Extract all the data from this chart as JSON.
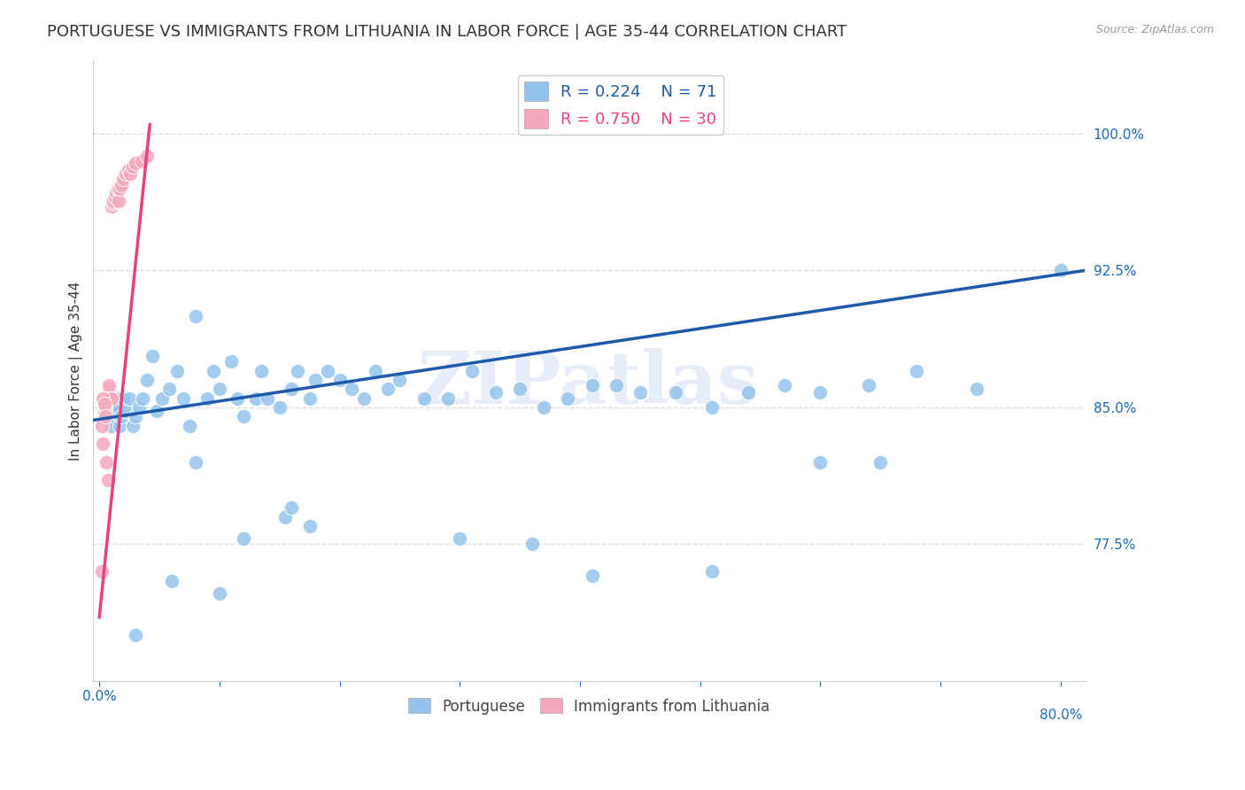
{
  "title": "PORTUGUESE VS IMMIGRANTS FROM LITHUANIA IN LABOR FORCE | AGE 35-44 CORRELATION CHART",
  "source": "Source: ZipAtlas.com",
  "ylabel": "In Labor Force | Age 35-44",
  "ytick_labels": [
    "100.0%",
    "92.5%",
    "85.0%",
    "77.5%"
  ],
  "ytick_values": [
    1.0,
    0.925,
    0.85,
    0.775
  ],
  "ymin": 0.7,
  "ymax": 1.04,
  "xmin": -0.005,
  "xmax": 0.82,
  "xtick_left_label": "0.0%",
  "xtick_right_label": "80.0%",
  "blue_r": "0.224",
  "blue_n": "71",
  "pink_r": "0.750",
  "pink_n": "30",
  "legend_label_blue": "Portuguese",
  "legend_label_pink": "Immigrants from Lithuania",
  "blue_color": "#94C4EC",
  "pink_color": "#F4A8BC",
  "blue_line_color": "#1E5AAB",
  "pink_line_color": "#E8407A",
  "watermark": "ZIPatlas",
  "blue_scatter_x": [
    0.005,
    0.006,
    0.007,
    0.008,
    0.009,
    0.01,
    0.01,
    0.011,
    0.012,
    0.013,
    0.014,
    0.015,
    0.016,
    0.017,
    0.018,
    0.02,
    0.022,
    0.025,
    0.028,
    0.03,
    0.033,
    0.036,
    0.04,
    0.044,
    0.048,
    0.052,
    0.058,
    0.065,
    0.07,
    0.075,
    0.08,
    0.09,
    0.095,
    0.1,
    0.11,
    0.115,
    0.12,
    0.13,
    0.135,
    0.14,
    0.15,
    0.16,
    0.165,
    0.175,
    0.18,
    0.19,
    0.2,
    0.21,
    0.22,
    0.23,
    0.24,
    0.25,
    0.27,
    0.29,
    0.31,
    0.33,
    0.35,
    0.37,
    0.39,
    0.41,
    0.43,
    0.45,
    0.48,
    0.51,
    0.54,
    0.57,
    0.6,
    0.64,
    0.68,
    0.73,
    0.8
  ],
  "blue_scatter_y": [
    0.855,
    0.85,
    0.845,
    0.848,
    0.852,
    0.855,
    0.84,
    0.848,
    0.852,
    0.855,
    0.848,
    0.855,
    0.85,
    0.84,
    0.845,
    0.855,
    0.848,
    0.855,
    0.84,
    0.845,
    0.85,
    0.855,
    0.865,
    0.878,
    0.848,
    0.855,
    0.86,
    0.87,
    0.855,
    0.84,
    0.82,
    0.855,
    0.87,
    0.86,
    0.875,
    0.855,
    0.845,
    0.855,
    0.87,
    0.855,
    0.85,
    0.86,
    0.87,
    0.855,
    0.865,
    0.87,
    0.865,
    0.86,
    0.855,
    0.87,
    0.86,
    0.865,
    0.855,
    0.855,
    0.87,
    0.858,
    0.86,
    0.85,
    0.855,
    0.862,
    0.862,
    0.858,
    0.858,
    0.85,
    0.858,
    0.862,
    0.858,
    0.862,
    0.87,
    0.86,
    0.925
  ],
  "blue_outliers_x": [
    0.03,
    0.06,
    0.08,
    0.1,
    0.12,
    0.155,
    0.16,
    0.175,
    0.3,
    0.36,
    0.41,
    0.51,
    0.6,
    0.65
  ],
  "blue_outliers_y": [
    0.725,
    0.755,
    0.9,
    0.748,
    0.778,
    0.79,
    0.795,
    0.785,
    0.778,
    0.775,
    0.758,
    0.76,
    0.82,
    0.82
  ],
  "pink_scatter_x": [
    0.002,
    0.003,
    0.004,
    0.005,
    0.005,
    0.006,
    0.006,
    0.007,
    0.007,
    0.008,
    0.008,
    0.009,
    0.01,
    0.01,
    0.011,
    0.012,
    0.013,
    0.014,
    0.015,
    0.016,
    0.017,
    0.018,
    0.02,
    0.022,
    0.024,
    0.026,
    0.028,
    0.03,
    0.035,
    0.04
  ],
  "pink_scatter_y": [
    0.76,
    0.83,
    0.848,
    0.85,
    0.852,
    0.853,
    0.855,
    0.856,
    0.858,
    0.86,
    0.862,
    0.855,
    0.855,
    0.96,
    0.962,
    0.963,
    0.965,
    0.968,
    0.97,
    0.963,
    0.97,
    0.972,
    0.975,
    0.978,
    0.98,
    0.978,
    0.982,
    0.984,
    0.985,
    0.988
  ],
  "pink_outliers_x": [
    0.002,
    0.003,
    0.004,
    0.005,
    0.006,
    0.007
  ],
  "pink_outliers_y": [
    0.84,
    0.855,
    0.852,
    0.845,
    0.82,
    0.81
  ],
  "grid_color": "#DDDDDD",
  "title_fontsize": 13,
  "axis_label_fontsize": 11,
  "tick_fontsize": 11,
  "n_xticks": 9
}
